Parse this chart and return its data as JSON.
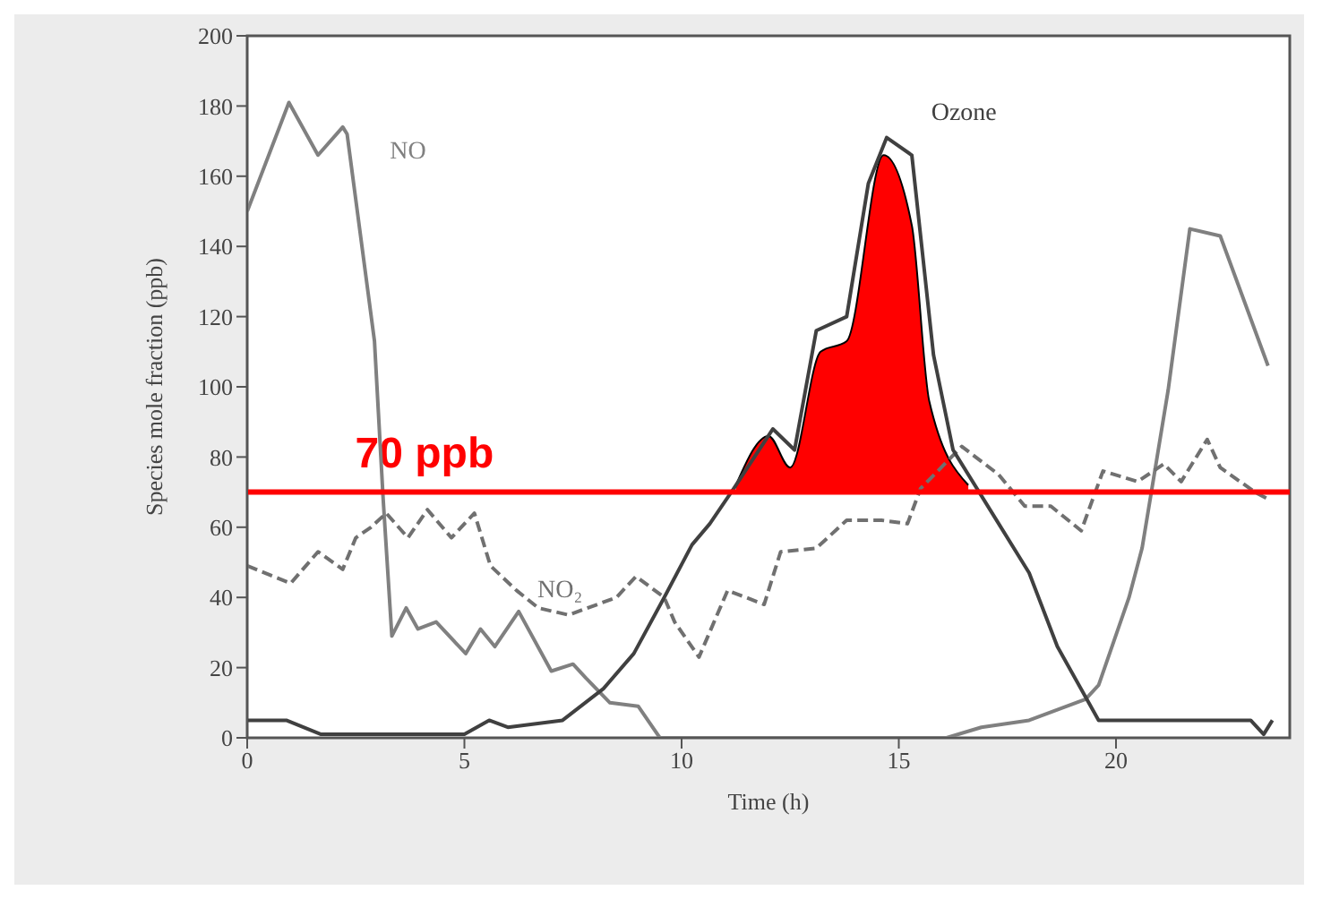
{
  "chart_data": {
    "type": "line",
    "xlabel": "Time (h)",
    "ylabel": "Species mole fraction (ppb)",
    "xlim": [
      0,
      24
    ],
    "xticks": [
      0,
      5,
      10,
      15,
      20
    ],
    "ylim": [
      0,
      200
    ],
    "yticks": [
      0,
      20,
      40,
      60,
      80,
      100,
      120,
      140,
      160,
      180,
      200
    ],
    "marker": "none",
    "series": [
      {
        "name": "NO",
        "color": "#808080",
        "line_style": "solid",
        "x": [
          0,
          0.96,
          1.63,
          2.2,
          2.3,
          2.93,
          3.13,
          3.33,
          3.66,
          3.93,
          4.35,
          5.03,
          5.37,
          5.7,
          6.25,
          7.0,
          7.5,
          7.8,
          8.35,
          9.0,
          9.5,
          16.1,
          16.9,
          18.0,
          19.3,
          19.6,
          20.3,
          20.6,
          21.2,
          21.7,
          22.4,
          23.5
        ],
        "values": [
          150,
          181,
          166,
          174,
          172,
          113,
          68,
          29,
          37,
          31,
          33,
          24,
          31,
          26,
          36,
          19,
          21,
          17,
          10,
          9,
          0,
          0,
          3,
          5,
          11,
          15,
          40,
          54,
          99,
          145,
          143,
          106
        ]
      },
      {
        "name": "NO₂",
        "color": "#707070",
        "line_style": "dashed",
        "x": [
          0,
          1,
          1.63,
          2.2,
          2.5,
          2.85,
          3.2,
          3.7,
          4.15,
          4.7,
          5.23,
          5.6,
          6.2,
          6.7,
          7.4,
          8.5,
          8.95,
          9.6,
          9.84,
          10.4,
          11.06,
          11.9,
          12.28,
          13.1,
          13.8,
          14.6,
          15.2,
          15.5,
          16.45,
          17.3,
          17.9,
          18.5,
          19.2,
          19.7,
          20.5,
          21.1,
          21.5,
          22.1,
          22.4,
          23.2,
          23.5
        ],
        "values": [
          49,
          44,
          53,
          48,
          57,
          60,
          64,
          57,
          65,
          57,
          64,
          49,
          42,
          37,
          35,
          40,
          46,
          40,
          33,
          23,
          42,
          38,
          53,
          54,
          62,
          62,
          61,
          71,
          83,
          75,
          66,
          66,
          59,
          76,
          73,
          78,
          73,
          85,
          77,
          70,
          68
        ]
      },
      {
        "name": "Ozone",
        "color": "#404040",
        "line_style": "solid",
        "x": [
          0,
          0.9,
          1.7,
          5.0,
          5.57,
          6.0,
          7.26,
          8.2,
          8.9,
          9.6,
          10.24,
          10.65,
          11.2,
          12.1,
          12.6,
          13.1,
          13.8,
          14.3,
          14.72,
          15.3,
          15.8,
          16.25,
          17.15,
          18.0,
          18.65,
          19.6,
          21.0,
          23.1,
          23.4,
          23.6
        ],
        "values": [
          5,
          5,
          1,
          1,
          5,
          3,
          5,
          14,
          24,
          40,
          55,
          61,
          71,
          88,
          82,
          116,
          120,
          158,
          171,
          166,
          109,
          82,
          64,
          47,
          26,
          5,
          5,
          5,
          1,
          5
        ]
      },
      {
        "type": "area",
        "color": "#ff0000",
        "x": [
          11.25,
          12.0,
          12.5,
          13.2,
          13.8,
          14.65,
          15.3,
          15.7,
          16.6
        ],
        "values": [
          72,
          86,
          77,
          110,
          113,
          166,
          146,
          96,
          72
        ]
      }
    ],
    "ref_lines": [
      {
        "axis": "y",
        "value": 70,
        "label": "70 ppb",
        "color": "#ff0000",
        "line_style": "solid"
      }
    ]
  }
}
